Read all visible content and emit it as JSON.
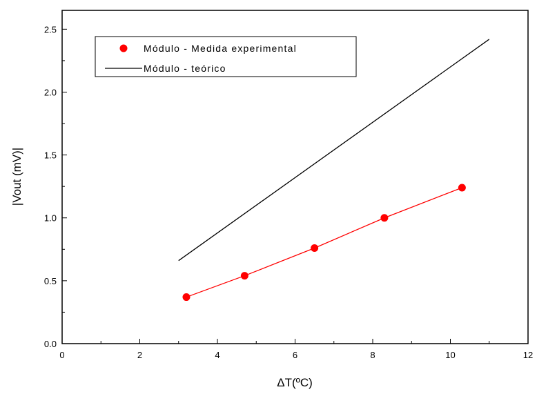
{
  "chart_data": {
    "type": "scatter",
    "xlabel": "ΔT(ºC)",
    "ylabel": "|Vout (mV)|",
    "xlim": [
      0,
      12
    ],
    "ylim": [
      0,
      2.65
    ],
    "x_ticks": [
      0,
      2,
      4,
      6,
      8,
      10,
      12
    ],
    "x_tick_labels": [
      "0",
      "2",
      "4",
      "6",
      "8",
      "10",
      "12"
    ],
    "y_ticks": [
      0,
      0.5,
      1,
      1.5,
      2,
      2.5
    ],
    "y_tick_labels": [
      "0.0",
      "0.5",
      "1.0",
      "1.5",
      "2.0",
      "2.5"
    ],
    "grid": false,
    "legend_position": "top-left",
    "series": [
      {
        "name": "Módulo - Medida experimental",
        "style": "markers+line",
        "color": "#ff0000",
        "x": [
          3.2,
          4.7,
          6.5,
          8.3,
          10.3
        ],
        "y": [
          0.37,
          0.54,
          0.76,
          1.0,
          1.24
        ]
      },
      {
        "name": "Módulo - teórico",
        "style": "line",
        "color": "#000000",
        "x": [
          3.0,
          11.0
        ],
        "y": [
          0.66,
          2.42
        ]
      }
    ]
  }
}
